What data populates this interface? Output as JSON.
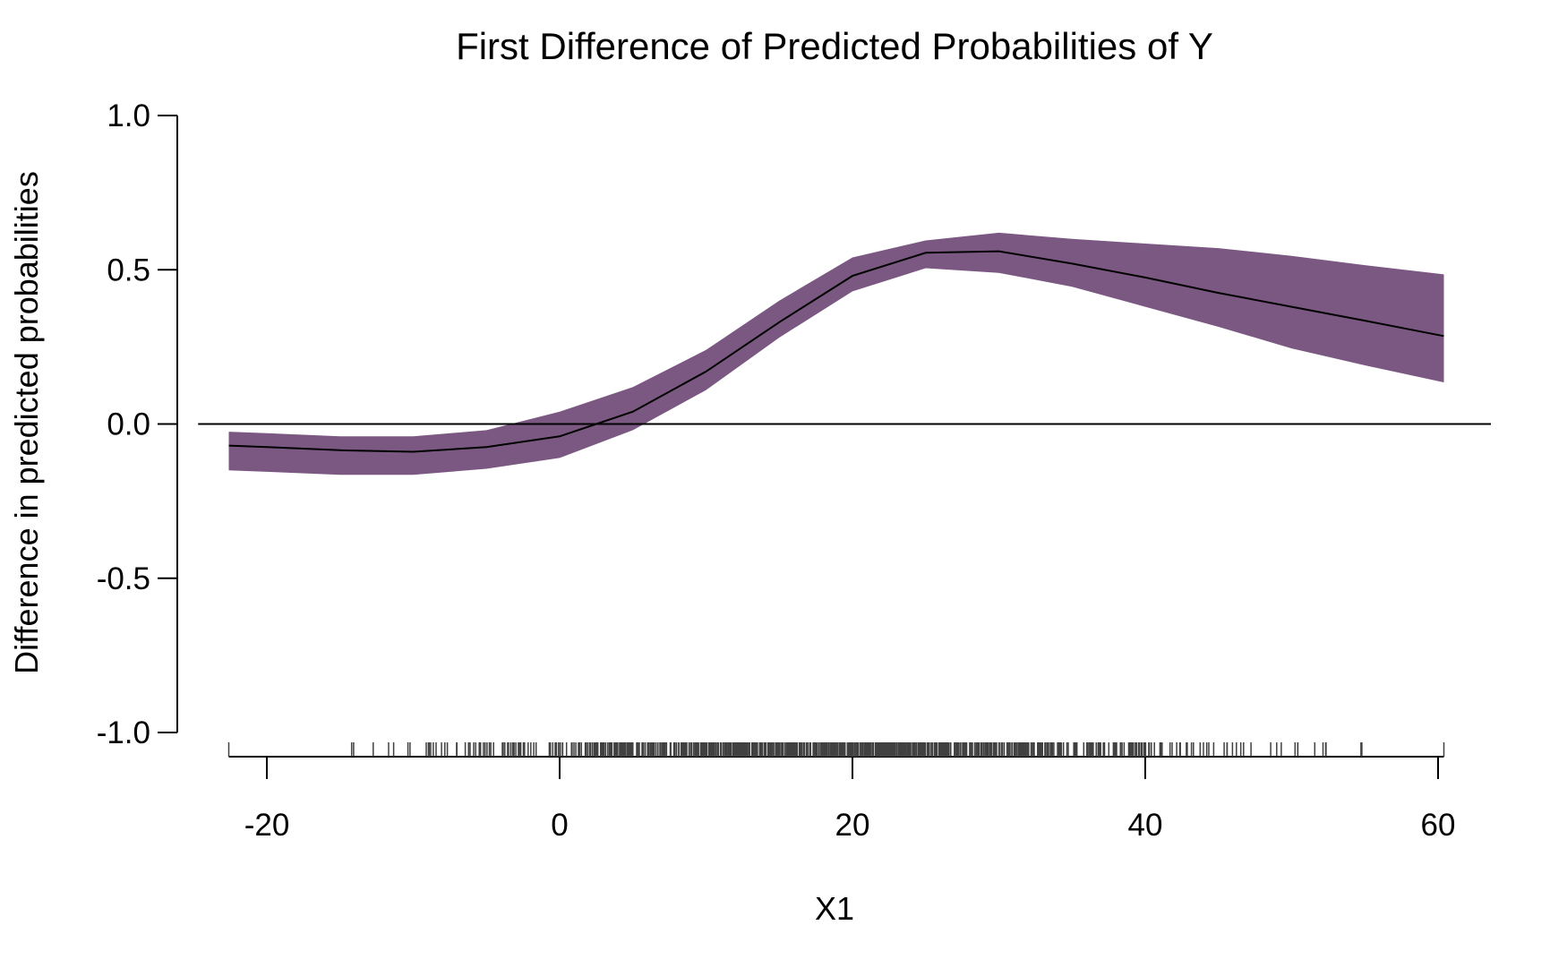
{
  "chart_data": {
    "type": "line",
    "title": "First Difference of Predicted Probabilities of Y",
    "xlabel": "X1",
    "ylabel": "Difference in predicted probabilities",
    "xlim": [
      -25,
      65
    ],
    "ylim": [
      -1.0,
      1.0
    ],
    "x_ticks": [
      -20,
      0,
      20,
      40,
      60
    ],
    "y_ticks": [
      -1.0,
      -0.5,
      0.0,
      0.5,
      1.0
    ],
    "x_tick_labels": [
      "-20",
      "0",
      "20",
      "40",
      "60"
    ],
    "y_tick_labels": [
      "-1.0",
      "-0.5",
      "0.0",
      "0.5",
      "1.0"
    ],
    "grid": false,
    "reference_line_y": 0.0,
    "colors": {
      "band": "#7b5882",
      "line": "#000000",
      "rug": "#404040"
    },
    "x": [
      -22.6,
      -20,
      -15,
      -10,
      -5,
      0,
      5,
      10,
      15,
      20,
      25,
      30,
      35,
      40,
      45,
      50,
      55,
      60.4
    ],
    "mean": [
      -0.07,
      -0.075,
      -0.085,
      -0.09,
      -0.075,
      -0.04,
      0.04,
      0.17,
      0.33,
      0.48,
      0.555,
      0.56,
      0.52,
      0.475,
      0.425,
      0.38,
      0.335,
      0.285
    ],
    "lower": [
      -0.15,
      -0.155,
      -0.165,
      -0.165,
      -0.145,
      -0.11,
      -0.02,
      0.11,
      0.28,
      0.43,
      0.505,
      0.49,
      0.445,
      0.38,
      0.315,
      0.245,
      0.19,
      0.135
    ],
    "upper": [
      -0.025,
      -0.03,
      -0.04,
      -0.04,
      -0.02,
      0.04,
      0.12,
      0.24,
      0.4,
      0.54,
      0.595,
      0.62,
      0.6,
      0.585,
      0.57,
      0.545,
      0.515,
      0.485
    ],
    "rug_range": [
      -22.6,
      60.4
    ]
  }
}
